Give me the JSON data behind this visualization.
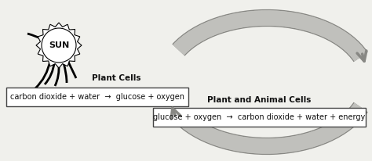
{
  "bg_color": "#f0f0ec",
  "box1_text": "carbon dioxide + water  →  glucose + oxygen",
  "box2_text": "glucose + oxygen  →  carbon dioxide + water + energy",
  "label_plant": "Plant Cells",
  "label_animal": "Plant and Animal Cells",
  "sun_label": "SUN",
  "arrow_color": "#c0c0bc",
  "arrow_edge_color": "#888884",
  "box_edge_color": "#444444",
  "text_color": "#111111",
  "font_size_box": 7.0,
  "font_size_label": 7.5,
  "font_size_sun": 8.0
}
